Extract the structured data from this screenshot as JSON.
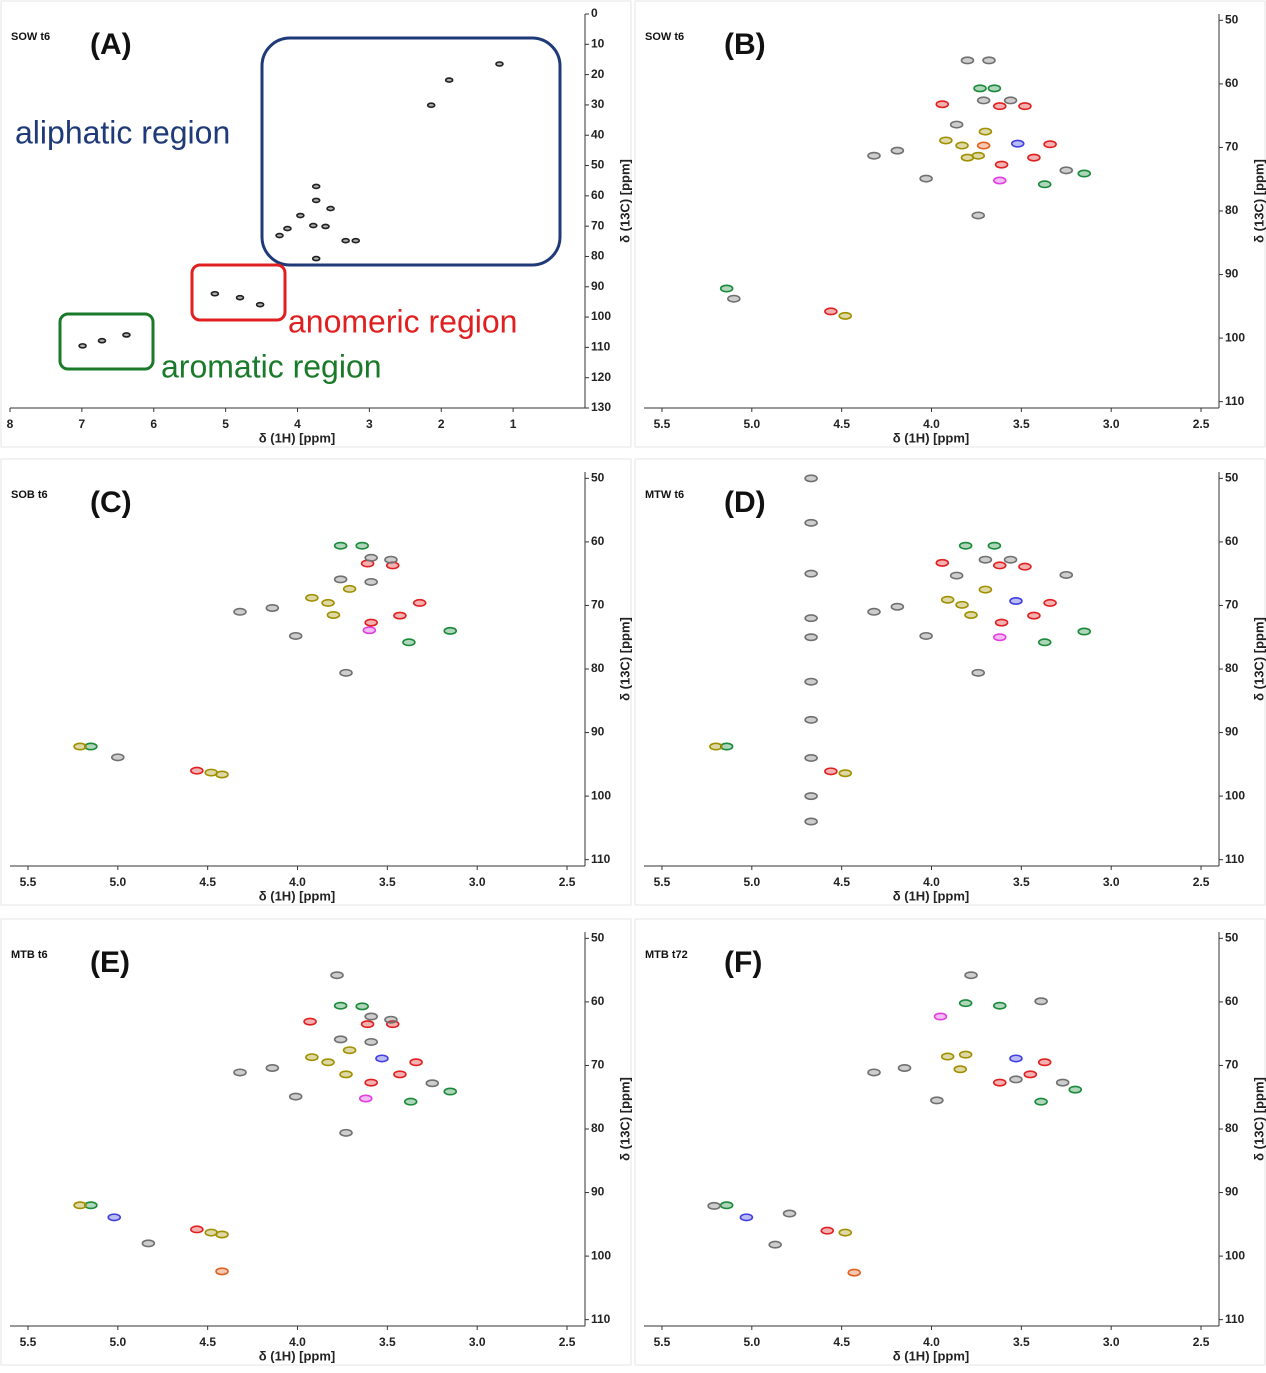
{
  "chart_data": [
    {
      "type": "scatter",
      "title": "(A)",
      "subtitle": "SOW t6",
      "x_label": "δ (1H) [ppm]",
      "y_label": "δ (13C) [ppm]",
      "xlim": [
        8,
        0
      ],
      "ylim": [
        0,
        130
      ],
      "xticks": [
        8,
        7,
        6,
        5,
        4,
        3,
        2,
        1
      ],
      "yticks": [
        0,
        10,
        20,
        30,
        40,
        50,
        60,
        70,
        80,
        90,
        100,
        110,
        120,
        130
      ],
      "series": [
        {
          "color": "#202020",
          "x": [
            3.74,
            3.74,
            3.54,
            3.96,
            3.78,
            3.61,
            3.33,
            3.19,
            4.14,
            4.25,
            1.89,
            2.14,
            1.19,
            5.15,
            4.52,
            4.8,
            6.38,
            6.72,
            6.99,
            3.74
          ],
          "values": [
            56.9,
            61.5,
            64.2,
            66.5,
            69.8,
            70.1,
            74.8,
            74.8,
            70.8,
            73.1,
            21.8,
            30.1,
            16.5,
            92.3,
            95.9,
            93.6,
            105.9,
            107.8,
            109.5,
            80.7
          ]
        }
      ],
      "annotations": [
        {
          "text": "aliphatic region",
          "color": "#1f3a78"
        },
        {
          "text": "anomeric region",
          "color": "#e02020"
        },
        {
          "text": "aromatic region",
          "color": "#1a7a2a"
        }
      ]
    },
    {
      "type": "scatter",
      "title": "(B)",
      "subtitle": "SOW t6",
      "x_label": "δ (1H) [ppm]",
      "y_label": "δ (13C) [ppm]",
      "xlim": [
        5.6,
        2.4
      ],
      "ylim": [
        49,
        111
      ],
      "xticks": [
        5.5,
        {
          "value": 5,
          "label": "5.0"
        },
        4.5,
        {
          "value": 4,
          "label": "4.0"
        },
        3.5,
        {
          "value": 3,
          "label": "3.0"
        },
        2.5
      ],
      "yticks": [
        50,
        60,
        70,
        80,
        90,
        100,
        110
      ],
      "series": [
        {
          "color": "#1a8a3a",
          "x": [
            3.73,
            3.65,
            3.37,
            3.15,
            5.14
          ],
          "values": [
            60.7,
            60.7,
            75.8,
            74.1,
            92.2
          ]
        },
        {
          "color": "#e02020",
          "x": [
            3.94,
            3.62,
            3.48,
            3.34,
            3.43,
            3.61,
            4.56
          ],
          "values": [
            63.2,
            63.5,
            63.5,
            69.5,
            71.6,
            72.7,
            95.8
          ]
        },
        {
          "color": "#a09000",
          "x": [
            3.92,
            3.83,
            3.8,
            3.74,
            3.7,
            4.48
          ],
          "values": [
            68.9,
            69.7,
            71.6,
            71.3,
            67.5,
            96.5
          ]
        },
        {
          "color": "#707070",
          "x": [
            3.8,
            3.68,
            3.71,
            3.56,
            3.86,
            4.03,
            3.74,
            4.19,
            4.32,
            3.25,
            5.1
          ],
          "values": [
            56.3,
            56.3,
            62.6,
            62.6,
            66.4,
            74.9,
            80.7,
            70.5,
            71.3,
            73.6,
            93.8
          ]
        },
        {
          "color": "#4040e0",
          "x": [
            3.52
          ],
          "values": [
            69.4
          ]
        },
        {
          "color": "#e040e0",
          "x": [
            3.62
          ],
          "values": [
            75.2
          ]
        },
        {
          "color": "#e06020",
          "x": [
            3.71
          ],
          "values": [
            69.7
          ]
        }
      ]
    },
    {
      "type": "scatter",
      "title": "(C)",
      "subtitle": "SOB t6",
      "x_label": "δ (1H) [ppm]",
      "y_label": "δ (13C) [ppm]",
      "xlim": [
        5.6,
        2.4
      ],
      "ylim": [
        49,
        111
      ],
      "xticks": [
        5.5,
        {
          "value": 5,
          "label": "5.0"
        },
        4.5,
        {
          "value": 4,
          "label": "4.0"
        },
        3.5,
        {
          "value": 3,
          "label": "3.0"
        },
        2.5
      ],
      "yticks": [
        50,
        60,
        70,
        80,
        90,
        100,
        110
      ],
      "series": [
        {
          "color": "#1a8a3a",
          "x": [
            3.76,
            3.64,
            3.38,
            3.15,
            5.15
          ],
          "values": [
            60.6,
            60.6,
            75.8,
            74.0,
            92.2
          ]
        },
        {
          "color": "#e02020",
          "x": [
            3.61,
            3.47,
            3.32,
            3.43,
            3.59,
            4.56
          ],
          "values": [
            63.4,
            63.7,
            69.6,
            71.6,
            72.7,
            96.0
          ]
        },
        {
          "color": "#a09000",
          "x": [
            3.92,
            3.83,
            3.8,
            3.71,
            4.48,
            4.42,
            5.21
          ],
          "values": [
            68.8,
            69.6,
            71.5,
            67.4,
            96.3,
            96.6,
            92.2
          ]
        },
        {
          "color": "#707070",
          "x": [
            3.59,
            3.48,
            3.76,
            3.59,
            4.32,
            4.14,
            4.01,
            3.73,
            5.0
          ],
          "values": [
            62.5,
            62.8,
            65.9,
            66.3,
            71.0,
            70.4,
            74.8,
            80.6,
            93.9
          ]
        },
        {
          "color": "#e040e0",
          "x": [
            3.6
          ],
          "values": [
            73.9
          ]
        }
      ]
    },
    {
      "type": "scatter",
      "title": "(D)",
      "subtitle": "MTW t6",
      "x_label": "δ (1H) [ppm]",
      "y_label": "δ (13C) [ppm]",
      "xlim": [
        5.6,
        2.4
      ],
      "ylim": [
        49,
        111
      ],
      "xticks": [
        5.5,
        {
          "value": 5,
          "label": "5.0"
        },
        4.5,
        {
          "value": 4,
          "label": "4.0"
        },
        3.5,
        {
          "value": 3,
          "label": "3.0"
        },
        2.5
      ],
      "yticks": [
        50,
        60,
        70,
        80,
        90,
        100,
        110
      ],
      "series": [
        {
          "color": "#1a8a3a",
          "x": [
            3.81,
            3.65,
            3.37,
            3.15,
            5.14
          ],
          "values": [
            60.6,
            60.6,
            75.8,
            74.1,
            92.2
          ]
        },
        {
          "color": "#e02020",
          "x": [
            3.94,
            3.62,
            3.48,
            3.34,
            3.43,
            3.61,
            4.56
          ],
          "values": [
            63.3,
            63.7,
            63.9,
            69.6,
            71.6,
            72.7,
            96.1
          ]
        },
        {
          "color": "#a09000",
          "x": [
            3.91,
            3.83,
            3.78,
            3.7,
            4.48,
            5.2
          ],
          "values": [
            69.1,
            69.9,
            71.5,
            67.5,
            96.4,
            92.2
          ]
        },
        {
          "color": "#707070",
          "x": [
            3.7,
            3.56,
            3.86,
            4.03,
            3.74,
            4.19,
            4.32,
            3.25,
            4.67,
            4.67,
            4.67,
            4.67,
            4.67,
            4.67,
            4.67,
            4.67,
            4.67,
            4.67
          ],
          "values": [
            62.8,
            62.8,
            65.3,
            74.8,
            80.6,
            70.2,
            71.0,
            65.2,
            50,
            57,
            65,
            72,
            75,
            82,
            88,
            94,
            100,
            104
          ]
        },
        {
          "color": "#4040e0",
          "x": [
            3.53
          ],
          "values": [
            69.3
          ]
        },
        {
          "color": "#e040e0",
          "x": [
            3.62
          ],
          "values": [
            75.0
          ]
        }
      ]
    },
    {
      "type": "scatter",
      "title": "(E)",
      "subtitle": "MTB t6",
      "x_label": "δ (1H) [ppm]",
      "y_label": "δ (13C) [ppm]",
      "xlim": [
        5.6,
        2.4
      ],
      "ylim": [
        49,
        111
      ],
      "xticks": [
        5.5,
        {
          "value": 5,
          "label": "5.0"
        },
        4.5,
        {
          "value": 4,
          "label": "4.0"
        },
        3.5,
        {
          "value": 3,
          "label": "3.0"
        },
        2.5
      ],
      "yticks": [
        50,
        60,
        70,
        80,
        90,
        100,
        110
      ],
      "series": [
        {
          "color": "#1a8a3a",
          "x": [
            3.76,
            3.64,
            3.37,
            3.15,
            5.15
          ],
          "values": [
            60.6,
            60.7,
            75.7,
            74.1,
            92.0
          ]
        },
        {
          "color": "#e02020",
          "x": [
            3.93,
            3.61,
            3.47,
            3.34,
            3.43,
            3.59,
            4.56
          ],
          "values": [
            63.1,
            63.5,
            63.5,
            69.5,
            71.4,
            72.7,
            95.8
          ]
        },
        {
          "color": "#a09000",
          "x": [
            3.92,
            3.83,
            3.73,
            3.71,
            4.48,
            4.42,
            5.21
          ],
          "values": [
            68.7,
            69.5,
            71.4,
            67.6,
            96.3,
            96.6,
            92.0
          ]
        },
        {
          "color": "#707070",
          "x": [
            3.59,
            3.48,
            3.76,
            3.59,
            4.32,
            4.14,
            4.01,
            3.73,
            3.25,
            4.83,
            3.78
          ],
          "values": [
            62.3,
            62.8,
            65.9,
            66.3,
            71.1,
            70.4,
            74.9,
            80.6,
            72.8,
            98.0,
            55.8
          ]
        },
        {
          "color": "#4040e0",
          "x": [
            3.53,
            5.02
          ],
          "values": [
            68.9,
            93.9
          ]
        },
        {
          "color": "#e040e0",
          "x": [
            3.62
          ],
          "values": [
            75.2
          ]
        },
        {
          "color": "#e06020",
          "x": [
            4.42
          ],
          "values": [
            102.4
          ]
        }
      ]
    },
    {
      "type": "scatter",
      "title": "(F)",
      "subtitle": "MTB t72",
      "x_label": "δ (1H) [ppm]",
      "y_label": "δ (13C) [ppm]",
      "xlim": [
        5.6,
        2.4
      ],
      "ylim": [
        49,
        111
      ],
      "xticks": [
        5.5,
        {
          "value": 5,
          "label": "5.0"
        },
        4.5,
        {
          "value": 4,
          "label": "4.0"
        },
        3.5,
        {
          "value": 3,
          "label": "3.0"
        },
        2.5
      ],
      "yticks": [
        50,
        60,
        70,
        80,
        90,
        100,
        110
      ],
      "series": [
        {
          "color": "#1a8a3a",
          "x": [
            3.81,
            3.62,
            3.39,
            3.2,
            5.14
          ],
          "values": [
            60.2,
            60.6,
            75.7,
            73.8,
            92.0
          ]
        },
        {
          "color": "#e02020",
          "x": [
            3.37,
            3.45,
            3.62,
            4.58
          ],
          "values": [
            69.5,
            71.4,
            72.7,
            96.0
          ]
        },
        {
          "color": "#a09000",
          "x": [
            3.91,
            3.81,
            3.84,
            4.48
          ],
          "values": [
            68.6,
            68.3,
            70.6,
            96.3
          ]
        },
        {
          "color": "#707070",
          "x": [
            4.32,
            4.15,
            3.97,
            3.53,
            3.27,
            5.21,
            4.79,
            4.87,
            3.78,
            3.39
          ],
          "values": [
            71.1,
            70.4,
            75.5,
            72.2,
            72.7,
            92.1,
            93.3,
            98.2,
            55.8,
            59.9
          ]
        },
        {
          "color": "#4040e0",
          "x": [
            5.03,
            3.53
          ],
          "values": [
            93.9,
            68.9
          ]
        },
        {
          "color": "#e040e0",
          "x": [
            3.95
          ],
          "values": [
            62.3
          ]
        },
        {
          "color": "#e06020",
          "x": [
            4.43
          ],
          "values": [
            102.6
          ]
        }
      ]
    }
  ]
}
